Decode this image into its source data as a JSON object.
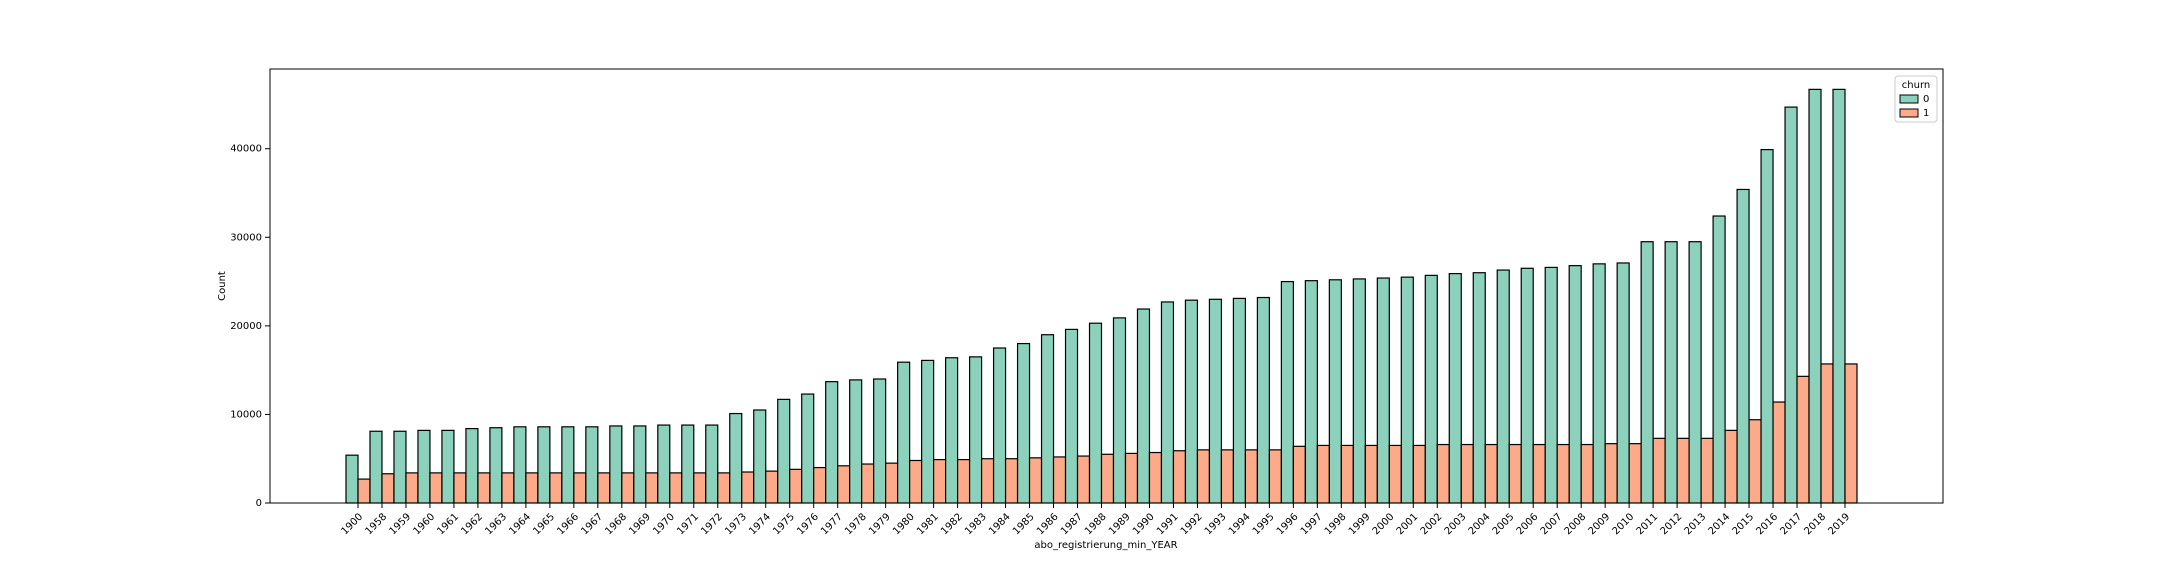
{
  "chart_data": {
    "type": "bar",
    "x_label": "abo_registrierung_min_YEAR",
    "y_label": "Count",
    "legend_title": "churn",
    "legend_position": "upper right",
    "categories": [
      "1900",
      "1958",
      "1959",
      "1960",
      "1961",
      "1962",
      "1963",
      "1964",
      "1965",
      "1966",
      "1967",
      "1968",
      "1969",
      "1970",
      "1971",
      "1972",
      "1973",
      "1974",
      "1975",
      "1976",
      "1977",
      "1978",
      "1979",
      "1980",
      "1981",
      "1982",
      "1983",
      "1984",
      "1985",
      "1986",
      "1987",
      "1988",
      "1989",
      "1990",
      "1991",
      "1992",
      "1993",
      "1994",
      "1995",
      "1996",
      "1997",
      "1998",
      "1999",
      "2000",
      "2001",
      "2002",
      "2003",
      "2004",
      "2005",
      "2006",
      "2007",
      "2008",
      "2009",
      "2010",
      "2011",
      "2012",
      "2013",
      "2014",
      "2015",
      "2016",
      "2017",
      "2018",
      "2019"
    ],
    "series": [
      {
        "name": "0",
        "color": "#8cd1bb",
        "values": [
          5400,
          8100,
          8100,
          8200,
          8200,
          8400,
          8500,
          8600,
          8600,
          8600,
          8600,
          8700,
          8700,
          8800,
          8800,
          8800,
          10100,
          10500,
          11700,
          12300,
          13700,
          13900,
          14000,
          15900,
          16100,
          16400,
          16500,
          17500,
          18000,
          19000,
          19600,
          20300,
          20900,
          21900,
          22700,
          22900,
          23000,
          23100,
          23200,
          25000,
          25100,
          25200,
          25300,
          25400,
          25500,
          25700,
          25900,
          26000,
          26300,
          26500,
          26600,
          26800,
          27000,
          27100,
          29500,
          29500,
          29500,
          32400,
          35400,
          39900,
          44700,
          46700,
          46700
        ]
      },
      {
        "name": "1",
        "color": "#fcaa89",
        "values": [
          2700,
          3300,
          3400,
          3400,
          3400,
          3400,
          3400,
          3400,
          3400,
          3400,
          3400,
          3400,
          3400,
          3400,
          3400,
          3400,
          3500,
          3600,
          3800,
          4000,
          4200,
          4400,
          4500,
          4800,
          4900,
          4900,
          5000,
          5000,
          5100,
          5200,
          5300,
          5500,
          5600,
          5700,
          5900,
          6000,
          6000,
          6000,
          6000,
          6400,
          6500,
          6500,
          6500,
          6500,
          6500,
          6600,
          6600,
          6600,
          6600,
          6600,
          6600,
          6600,
          6700,
          6700,
          7300,
          7300,
          7300,
          8200,
          9400,
          11400,
          14300,
          15700,
          15700
        ]
      }
    ],
    "ylim": [
      0,
      49000
    ],
    "yticks": [
      0,
      10000,
      20000,
      30000,
      40000
    ],
    "grid": false
  }
}
